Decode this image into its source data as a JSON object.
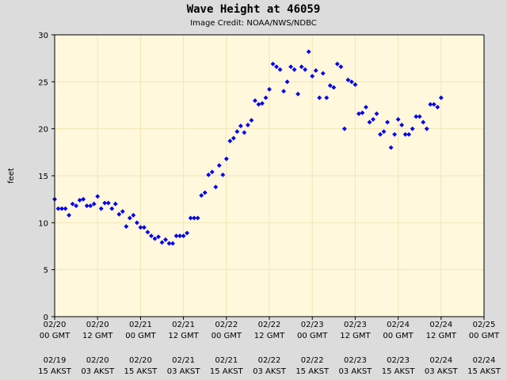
{
  "chart_data": {
    "type": "scatter",
    "title": "Wave Height at 46059",
    "subtitle": "Image Credit: NOAA/NWS/NDBC",
    "xlabel": "",
    "ylabel": "feet",
    "ylim": [
      0,
      30
    ],
    "yticks": [
      0,
      5,
      10,
      15,
      20,
      25,
      30
    ],
    "xlim_hours": [
      0,
      120
    ],
    "grid": true,
    "plot_background": "#fff8dc",
    "grid_color": "#f0e6b4",
    "marker_color": "#0000ee",
    "xticks": [
      {
        "hour": 0,
        "gmt_date": "02/20",
        "gmt_time": "00 GMT",
        "local_date": "02/19",
        "local_time": "15 AKST"
      },
      {
        "hour": 12,
        "gmt_date": "02/20",
        "gmt_time": "12 GMT",
        "local_date": "02/20",
        "local_time": "03 AKST"
      },
      {
        "hour": 24,
        "gmt_date": "02/21",
        "gmt_time": "00 GMT",
        "local_date": "02/20",
        "local_time": "15 AKST"
      },
      {
        "hour": 36,
        "gmt_date": "02/21",
        "gmt_time": "12 GMT",
        "local_date": "02/21",
        "local_time": "03 AKST"
      },
      {
        "hour": 48,
        "gmt_date": "02/22",
        "gmt_time": "00 GMT",
        "local_date": "02/21",
        "local_time": "15 AKST"
      },
      {
        "hour": 60,
        "gmt_date": "02/22",
        "gmt_time": "12 GMT",
        "local_date": "02/22",
        "local_time": "03 AKST"
      },
      {
        "hour": 72,
        "gmt_date": "02/23",
        "gmt_time": "00 GMT",
        "local_date": "02/22",
        "local_time": "15 AKST"
      },
      {
        "hour": 84,
        "gmt_date": "02/23",
        "gmt_time": "12 GMT",
        "local_date": "02/23",
        "local_time": "03 AKST"
      },
      {
        "hour": 96,
        "gmt_date": "02/24",
        "gmt_time": "00 GMT",
        "local_date": "02/23",
        "local_time": "15 AKST"
      },
      {
        "hour": 108,
        "gmt_date": "02/24",
        "gmt_time": "12 GMT",
        "local_date": "02/24",
        "local_time": "03 AKST"
      },
      {
        "hour": 120,
        "gmt_date": "02/25",
        "gmt_time": "00 GMT",
        "local_date": "02/24",
        "local_time": "15 AKST"
      }
    ],
    "series": [
      {
        "name": "",
        "points": [
          [
            0.0,
            12.5
          ],
          [
            1.0,
            11.5
          ],
          [
            2.0,
            11.5
          ],
          [
            3.0,
            11.5
          ],
          [
            4.0,
            10.8
          ],
          [
            5.0,
            12.0
          ],
          [
            6.0,
            11.8
          ],
          [
            7.0,
            12.4
          ],
          [
            8.0,
            12.5
          ],
          [
            9.0,
            11.8
          ],
          [
            10.0,
            11.8
          ],
          [
            11.0,
            12.0
          ],
          [
            12.0,
            12.8
          ],
          [
            13.0,
            11.5
          ],
          [
            14.0,
            12.1
          ],
          [
            15.0,
            12.1
          ],
          [
            16.0,
            11.5
          ],
          [
            17.0,
            12.0
          ],
          [
            18.0,
            10.9
          ],
          [
            19.0,
            11.2
          ],
          [
            20.0,
            9.6
          ],
          [
            21.0,
            10.5
          ],
          [
            22.0,
            10.8
          ],
          [
            23.0,
            10.0
          ],
          [
            24.0,
            9.5
          ],
          [
            25.0,
            9.5
          ],
          [
            26.0,
            9.0
          ],
          [
            27.0,
            8.6
          ],
          [
            28.0,
            8.3
          ],
          [
            29.0,
            8.5
          ],
          [
            30.0,
            7.9
          ],
          [
            31.0,
            8.2
          ],
          [
            32.0,
            7.8
          ],
          [
            33.0,
            7.8
          ],
          [
            34.0,
            8.6
          ],
          [
            35.0,
            8.6
          ],
          [
            36.0,
            8.6
          ],
          [
            37.0,
            8.9
          ],
          [
            38.0,
            10.5
          ],
          [
            39.0,
            10.5
          ],
          [
            40.0,
            10.5
          ],
          [
            41.0,
            12.9
          ],
          [
            42.0,
            13.2
          ],
          [
            43.0,
            15.1
          ],
          [
            44.0,
            15.4
          ],
          [
            45.0,
            13.8
          ],
          [
            46.0,
            16.1
          ],
          [
            47.0,
            15.1
          ],
          [
            48.0,
            16.8
          ],
          [
            49.0,
            18.7
          ],
          [
            50.0,
            19.0
          ],
          [
            51.0,
            19.7
          ],
          [
            52.0,
            20.3
          ],
          [
            53.0,
            19.6
          ],
          [
            54.0,
            20.4
          ],
          [
            55.0,
            20.9
          ],
          [
            56.0,
            23.0
          ],
          [
            57.0,
            22.6
          ],
          [
            58.0,
            22.7
          ],
          [
            59.0,
            23.3
          ],
          [
            60.0,
            24.2
          ],
          [
            61.0,
            26.9
          ],
          [
            62.0,
            26.6
          ],
          [
            63.0,
            26.3
          ],
          [
            64.0,
            24.0
          ],
          [
            65.0,
            25.0
          ],
          [
            66.0,
            26.6
          ],
          [
            67.0,
            26.3
          ],
          [
            68.0,
            23.7
          ],
          [
            69.0,
            26.6
          ],
          [
            70.0,
            26.3
          ],
          [
            71.0,
            28.2
          ],
          [
            72.0,
            25.6
          ],
          [
            73.0,
            26.2
          ],
          [
            74.0,
            23.3
          ],
          [
            75.0,
            25.9
          ],
          [
            76.0,
            23.3
          ],
          [
            77.0,
            24.6
          ],
          [
            78.0,
            24.4
          ],
          [
            79.0,
            26.9
          ],
          [
            80.0,
            26.6
          ],
          [
            81.0,
            20.0
          ],
          [
            82.0,
            25.2
          ],
          [
            83.0,
            25.0
          ],
          [
            84.0,
            24.7
          ],
          [
            85.0,
            21.6
          ],
          [
            86.0,
            21.7
          ],
          [
            87.0,
            22.3
          ],
          [
            88.0,
            20.7
          ],
          [
            89.0,
            21.0
          ],
          [
            90.0,
            21.6
          ],
          [
            91.0,
            19.4
          ],
          [
            92.0,
            19.7
          ],
          [
            93.0,
            20.7
          ],
          [
            94.0,
            18.0
          ],
          [
            95.0,
            19.4
          ],
          [
            96.0,
            21.0
          ],
          [
            97.0,
            20.4
          ],
          [
            98.0,
            19.4
          ],
          [
            99.0,
            19.4
          ],
          [
            100.0,
            20.0
          ],
          [
            101.0,
            21.3
          ],
          [
            102.0,
            21.3
          ],
          [
            103.0,
            20.7
          ],
          [
            104.0,
            20.0
          ],
          [
            105.0,
            22.6
          ],
          [
            106.0,
            22.6
          ],
          [
            107.0,
            22.3
          ],
          [
            108.0,
            23.3
          ]
        ]
      }
    ]
  }
}
